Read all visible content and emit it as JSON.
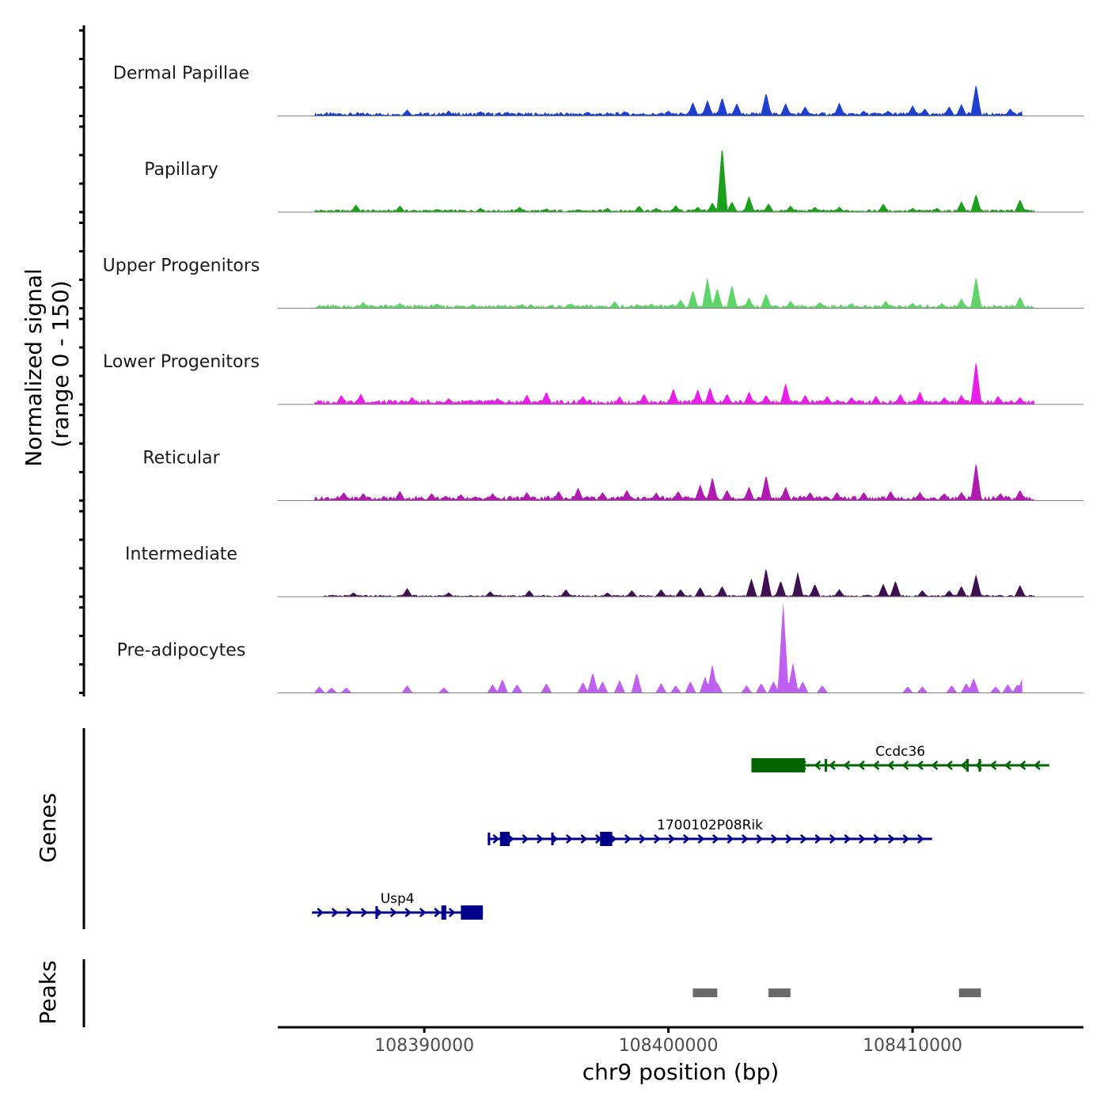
{
  "chart_data": {
    "type": "area",
    "title": "",
    "region": {
      "chrom": "chr9",
      "start": 108384000,
      "end": 108417000
    },
    "xlabel": "chr9 position (bp)",
    "xticks": [
      108390000,
      108400000,
      108410000
    ],
    "xtick_labels": [
      "108390000",
      "108400000",
      "108410000"
    ],
    "coverage": {
      "ylabel_line1": "Normalized signal",
      "ylabel_line2": "(range 0 - 150)",
      "yrange": [
        0,
        150
      ],
      "series": [
        {
          "name": "Dermal Papillae",
          "color": "#1f3fcf",
          "start": 108385500,
          "end": 108414500,
          "base": 4,
          "peaks": [
            [
              108389300,
              12
            ],
            [
              108391000,
              10
            ],
            [
              108392300,
              9
            ],
            [
              108393400,
              8
            ],
            [
              108396700,
              8
            ],
            [
              108398200,
              9
            ],
            [
              108400000,
              10
            ],
            [
              108401000,
              26
            ],
            [
              108401600,
              30
            ],
            [
              108402200,
              35
            ],
            [
              108402800,
              24
            ],
            [
              108404000,
              44
            ],
            [
              108404800,
              24
            ],
            [
              108405600,
              18
            ],
            [
              108407000,
              25
            ],
            [
              108408000,
              10
            ],
            [
              108409000,
              10
            ],
            [
              108410000,
              20
            ],
            [
              108410500,
              14
            ],
            [
              108411500,
              18
            ],
            [
              108412000,
              22
            ],
            [
              108412600,
              60
            ],
            [
              108414000,
              14
            ],
            [
              108414500,
              10
            ]
          ]
        },
        {
          "name": "Papillary",
          "color": "#1ba01b",
          "start": 108385500,
          "end": 108415000,
          "base": 3,
          "peaks": [
            [
              108387200,
              14
            ],
            [
              108389000,
              12
            ],
            [
              108390500,
              6
            ],
            [
              108392300,
              8
            ],
            [
              108393900,
              10
            ],
            [
              108395000,
              7
            ],
            [
              108397500,
              8
            ],
            [
              108398800,
              12
            ],
            [
              108399500,
              8
            ],
            [
              108400300,
              13
            ],
            [
              108401200,
              10
            ],
            [
              108401800,
              18
            ],
            [
              108402200,
              125
            ],
            [
              108402600,
              20
            ],
            [
              108403300,
              30
            ],
            [
              108404100,
              16
            ],
            [
              108405000,
              12
            ],
            [
              108406000,
              10
            ],
            [
              108407000,
              10
            ],
            [
              108408800,
              16
            ],
            [
              108410000,
              8
            ],
            [
              108411000,
              8
            ],
            [
              108412000,
              20
            ],
            [
              108412600,
              34
            ],
            [
              108414400,
              24
            ]
          ]
        },
        {
          "name": "Upper Progenitors",
          "color": "#5fd468",
          "start": 108385500,
          "end": 108415000,
          "base": 4,
          "peaks": [
            [
              108387500,
              12
            ],
            [
              108389000,
              10
            ],
            [
              108390500,
              9
            ],
            [
              108392000,
              8
            ],
            [
              108394000,
              8
            ],
            [
              108396000,
              9
            ],
            [
              108397800,
              13
            ],
            [
              108399300,
              9
            ],
            [
              108400500,
              16
            ],
            [
              108401000,
              34
            ],
            [
              108401600,
              58
            ],
            [
              108402000,
              38
            ],
            [
              108402600,
              44
            ],
            [
              108403300,
              20
            ],
            [
              108404000,
              28
            ],
            [
              108405000,
              14
            ],
            [
              108406200,
              12
            ],
            [
              108407500,
              10
            ],
            [
              108408900,
              14
            ],
            [
              108410000,
              10
            ],
            [
              108411200,
              10
            ],
            [
              108412000,
              18
            ],
            [
              108412600,
              60
            ],
            [
              108414400,
              22
            ]
          ]
        },
        {
          "name": "Lower Progenitors",
          "color": "#e81fe8",
          "start": 108385500,
          "end": 108415000,
          "base": 5,
          "peaks": [
            [
              108386600,
              18
            ],
            [
              108387400,
              20
            ],
            [
              108389500,
              14
            ],
            [
              108391000,
              12
            ],
            [
              108393000,
              12
            ],
            [
              108394200,
              18
            ],
            [
              108395000,
              24
            ],
            [
              108396500,
              16
            ],
            [
              108398000,
              15
            ],
            [
              108399000,
              20
            ],
            [
              108400200,
              30
            ],
            [
              108401200,
              28
            ],
            [
              108401700,
              32
            ],
            [
              108402400,
              20
            ],
            [
              108403300,
              24
            ],
            [
              108404000,
              18
            ],
            [
              108404800,
              40
            ],
            [
              108405600,
              18
            ],
            [
              108406500,
              16
            ],
            [
              108407500,
              14
            ],
            [
              108408500,
              16
            ],
            [
              108409500,
              20
            ],
            [
              108410300,
              24
            ],
            [
              108411300,
              14
            ],
            [
              108412000,
              18
            ],
            [
              108412600,
              82
            ],
            [
              108413500,
              16
            ],
            [
              108414400,
              14
            ]
          ]
        },
        {
          "name": "Reticular",
          "color": "#b01ab0",
          "start": 108385500,
          "end": 108415000,
          "base": 5,
          "peaks": [
            [
              108386700,
              16
            ],
            [
              108387500,
              14
            ],
            [
              108389000,
              18
            ],
            [
              108390300,
              14
            ],
            [
              108391500,
              12
            ],
            [
              108392800,
              14
            ],
            [
              108394200,
              16
            ],
            [
              108395500,
              18
            ],
            [
              108396300,
              24
            ],
            [
              108397300,
              16
            ],
            [
              108398300,
              20
            ],
            [
              108399500,
              15
            ],
            [
              108400400,
              18
            ],
            [
              108401300,
              30
            ],
            [
              108401800,
              44
            ],
            [
              108402400,
              20
            ],
            [
              108403300,
              26
            ],
            [
              108404000,
              48
            ],
            [
              108404800,
              26
            ],
            [
              108405800,
              16
            ],
            [
              108406900,
              16
            ],
            [
              108408000,
              16
            ],
            [
              108409100,
              18
            ],
            [
              108410300,
              16
            ],
            [
              108411300,
              14
            ],
            [
              108412000,
              16
            ],
            [
              108412600,
              72
            ],
            [
              108413600,
              14
            ],
            [
              108414400,
              20
            ]
          ]
        },
        {
          "name": "Intermediate",
          "color": "#3e1052",
          "start": 108385800,
          "end": 108415000,
          "base": 2,
          "peaks": [
            [
              108387100,
              8
            ],
            [
              108389300,
              16
            ],
            [
              108391000,
              8
            ],
            [
              108392700,
              10
            ],
            [
              108394300,
              12
            ],
            [
              108395800,
              14
            ],
            [
              108397500,
              8
            ],
            [
              108398500,
              12
            ],
            [
              108399700,
              14
            ],
            [
              108400500,
              14
            ],
            [
              108401300,
              18
            ],
            [
              108402200,
              20
            ],
            [
              108403400,
              34
            ],
            [
              108404000,
              54
            ],
            [
              108404600,
              30
            ],
            [
              108405300,
              46
            ],
            [
              108406000,
              24
            ],
            [
              108407000,
              14
            ],
            [
              108408800,
              24
            ],
            [
              108409300,
              30
            ],
            [
              108410400,
              12
            ],
            [
              108411500,
              12
            ],
            [
              108412000,
              20
            ],
            [
              108412600,
              42
            ],
            [
              108414400,
              22
            ]
          ]
        },
        {
          "name": "Pre-adipocytes",
          "color": "#c060f0",
          "start": 108385500,
          "end": 108414500,
          "base": 0,
          "peaks": [
            [
              108385700,
              12
            ],
            [
              108386200,
              10
            ],
            [
              108386800,
              10
            ],
            [
              108389300,
              14
            ],
            [
              108390800,
              10
            ],
            [
              108392800,
              16
            ],
            [
              108393200,
              26
            ],
            [
              108393800,
              16
            ],
            [
              108395000,
              18
            ],
            [
              108396500,
              20
            ],
            [
              108396900,
              38
            ],
            [
              108397300,
              22
            ],
            [
              108398000,
              24
            ],
            [
              108398700,
              38
            ],
            [
              108399700,
              18
            ],
            [
              108400300,
              14
            ],
            [
              108400900,
              22
            ],
            [
              108401500,
              30
            ],
            [
              108401800,
              54
            ],
            [
              108402000,
              20
            ],
            [
              108403200,
              14
            ],
            [
              108403800,
              18
            ],
            [
              108404300,
              22
            ],
            [
              108404700,
              170
            ],
            [
              108405100,
              56
            ],
            [
              108405500,
              22
            ],
            [
              108406300,
              14
            ],
            [
              108409800,
              12
            ],
            [
              108410400,
              12
            ],
            [
              108411600,
              14
            ],
            [
              108412200,
              18
            ],
            [
              108412500,
              28
            ],
            [
              108413400,
              12
            ],
            [
              108413900,
              16
            ],
            [
              108414300,
              16
            ],
            [
              108414500,
              28
            ]
          ]
        }
      ]
    },
    "genes": {
      "label": "Genes",
      "items": [
        {
          "name": "Ccdc36",
          "strand": "-",
          "color": "#006400",
          "start": 108403400,
          "end": 108415600,
          "exons": [
            [
              108403400,
              108405600
            ],
            [
              108406400,
              108406500
            ],
            [
              108412200,
              108412300
            ],
            [
              108412700,
              108412800
            ]
          ],
          "row": 0
        },
        {
          "name": "1700102P08Rik",
          "strand": "+",
          "color": "#00008b",
          "start": 108392600,
          "end": 108410800,
          "exons": [
            [
              108392600,
              108392700
            ],
            [
              108393100,
              108393500
            ],
            [
              108395200,
              108395300
            ],
            [
              108397200,
              108397700
            ]
          ],
          "row": 1
        },
        {
          "name": "Usp4",
          "strand": "+",
          "color": "#00008b",
          "start": 108385400,
          "end": 108392400,
          "exons": [
            [
              108388000,
              108388100
            ],
            [
              108390700,
              108390900
            ],
            [
              108391500,
              108392400
            ]
          ],
          "row": 2
        }
      ]
    },
    "peaks": {
      "label": "Peaks",
      "color": "#696969",
      "regions": [
        [
          108401000,
          108402000
        ],
        [
          108404100,
          108405000
        ],
        [
          108411900,
          108412800
        ]
      ]
    }
  }
}
